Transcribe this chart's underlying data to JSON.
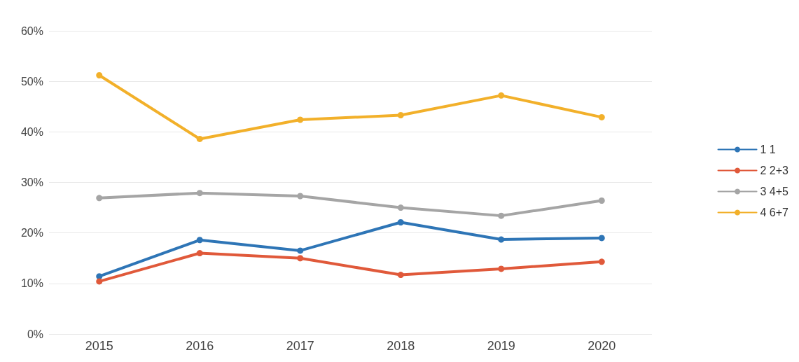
{
  "chart_data": {
    "type": "line",
    "categories": [
      "2015",
      "2016",
      "2017",
      "2018",
      "2019",
      "2020"
    ],
    "series": [
      {
        "name": "1 1",
        "color": "#2e75b6",
        "values": [
          11.4,
          18.6,
          16.5,
          22.1,
          18.7,
          19.0
        ]
      },
      {
        "name": "2 2+3",
        "color": "#e0593a",
        "values": [
          10.4,
          16.0,
          15.0,
          11.7,
          12.9,
          14.3
        ]
      },
      {
        "name": "3 4+5",
        "color": "#a5a5a5",
        "values": [
          26.9,
          27.9,
          27.3,
          25.0,
          23.4,
          26.4
        ]
      },
      {
        "name": "4 6+7",
        "color": "#f2b02a",
        "values": [
          51.2,
          38.6,
          42.4,
          43.3,
          47.2,
          42.9
        ]
      }
    ],
    "ylim": [
      0,
      60
    ],
    "yticks": [
      {
        "value": 0,
        "label": "0%"
      },
      {
        "value": 10,
        "label": "10%"
      },
      {
        "value": 20,
        "label": "20%"
      },
      {
        "value": 30,
        "label": "30%"
      },
      {
        "value": 40,
        "label": "40%"
      },
      {
        "value": 50,
        "label": "50%"
      },
      {
        "value": 60,
        "label": "60%"
      }
    ],
    "grid": "y",
    "legend": "right",
    "marker": "circle",
    "line_style": "solid"
  }
}
